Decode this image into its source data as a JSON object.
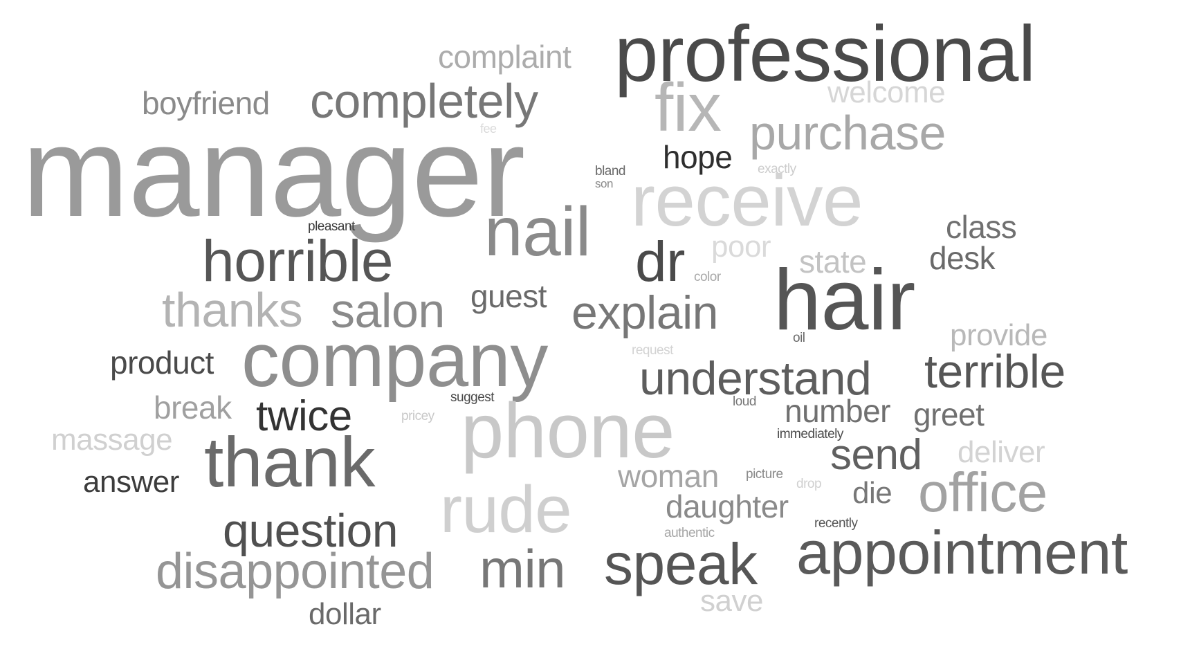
{
  "words": [
    {
      "id": "manager",
      "text": "manager",
      "color": "#9a9a9a"
    },
    {
      "id": "professional",
      "text": "professional",
      "color": "#4a4a4a"
    },
    {
      "id": "hair",
      "text": "hair",
      "color": "#555555"
    },
    {
      "id": "company",
      "text": "company",
      "color": "#8e8e8e"
    },
    {
      "id": "phone",
      "text": "phone",
      "color": "#c8c8c8"
    },
    {
      "id": "receive",
      "text": "receive",
      "color": "#d3d3d3"
    },
    {
      "id": "thank",
      "text": "thank",
      "color": "#6a6a6a"
    },
    {
      "id": "nail",
      "text": "nail",
      "color": "#8a8a8a"
    },
    {
      "id": "appointment",
      "text": "appointment",
      "color": "#5a5a5a"
    },
    {
      "id": "rude",
      "text": "rude",
      "color": "#cfcfcf"
    },
    {
      "id": "speak",
      "text": "speak",
      "color": "#555555"
    },
    {
      "id": "fix",
      "text": "fix",
      "color": "#b6b6b6"
    },
    {
      "id": "office",
      "text": "office",
      "color": "#a2a2a2"
    },
    {
      "id": "horrible",
      "text": "horrible",
      "color": "#565656"
    },
    {
      "id": "dr",
      "text": "dr",
      "color": "#4a4a4a"
    },
    {
      "id": "min",
      "text": "min",
      "color": "#777777"
    },
    {
      "id": "terrible",
      "text": "terrible",
      "color": "#565656"
    },
    {
      "id": "understand",
      "text": "understand",
      "color": "#5d5d5d"
    },
    {
      "id": "disappointed",
      "text": "disappointed",
      "color": "#959595"
    },
    {
      "id": "purchase",
      "text": "purchase",
      "color": "#a8a8a8"
    },
    {
      "id": "completely",
      "text": "completely",
      "color": "#777777"
    },
    {
      "id": "explain",
      "text": "explain",
      "color": "#777777"
    },
    {
      "id": "question",
      "text": "question",
      "color": "#505050"
    },
    {
      "id": "salon",
      "text": "salon",
      "color": "#8a8a8a"
    },
    {
      "id": "thanks",
      "text": "thanks",
      "color": "#b3b3b3"
    },
    {
      "id": "twice",
      "text": "twice",
      "color": "#333333"
    },
    {
      "id": "send",
      "text": "send",
      "color": "#606060"
    },
    {
      "id": "daughter",
      "text": "daughter",
      "color": "#8a8a8a"
    },
    {
      "id": "number",
      "text": "number",
      "color": "#707070"
    },
    {
      "id": "greet",
      "text": "greet",
      "color": "#707070"
    },
    {
      "id": "hope",
      "text": "hope",
      "color": "#2e2e2e"
    },
    {
      "id": "guest",
      "text": "guest",
      "color": "#6a6a6a"
    },
    {
      "id": "woman",
      "text": "woman",
      "color": "#a5a5a5"
    },
    {
      "id": "product",
      "text": "product",
      "color": "#4a4a4a"
    },
    {
      "id": "break",
      "text": "break",
      "color": "#a0a0a0"
    },
    {
      "id": "answer",
      "text": "answer",
      "color": "#3c3c3c"
    },
    {
      "id": "dollar",
      "text": "dollar",
      "color": "#6a6a6a"
    },
    {
      "id": "massage",
      "text": "massage",
      "color": "#d0d0d0"
    },
    {
      "id": "desk",
      "text": "desk",
      "color": "#6a6a6a"
    },
    {
      "id": "class",
      "text": "class",
      "color": "#707070"
    },
    {
      "id": "state",
      "text": "state",
      "color": "#c3c3c3"
    },
    {
      "id": "poor",
      "text": "poor",
      "color": "#dadada"
    },
    {
      "id": "provide",
      "text": "provide",
      "color": "#b8b8b8"
    },
    {
      "id": "deliver",
      "text": "deliver",
      "color": "#d3d3d3"
    },
    {
      "id": "die",
      "text": "die",
      "color": "#777777"
    },
    {
      "id": "save",
      "text": "save",
      "color": "#d0d0d0"
    },
    {
      "id": "welcome",
      "text": "welcome",
      "color": "#d6d6d6"
    },
    {
      "id": "complaint",
      "text": "complaint",
      "color": "#acacac"
    },
    {
      "id": "boyfriend",
      "text": "boyfriend",
      "color": "#8a8a8a"
    },
    {
      "id": "pleasant",
      "text": "pleasant",
      "color": "#3c3c3c"
    },
    {
      "id": "bland",
      "text": "bland",
      "color": "#6a6a6a"
    },
    {
      "id": "son",
      "text": "son",
      "color": "#8a8a8a"
    },
    {
      "id": "fee",
      "text": "fee",
      "color": "#dadada"
    },
    {
      "id": "exactly",
      "text": "exactly",
      "color": "#cccccc"
    },
    {
      "id": "color",
      "text": "color",
      "color": "#a8a8a8"
    },
    {
      "id": "oil",
      "text": "oil",
      "color": "#6a6a6a"
    },
    {
      "id": "request",
      "text": "request",
      "color": "#d3d3d3"
    },
    {
      "id": "suggest",
      "text": "suggest",
      "color": "#4a4a4a"
    },
    {
      "id": "loud",
      "text": "loud",
      "color": "#777777"
    },
    {
      "id": "pricey",
      "text": "pricey",
      "color": "#c8c8c8"
    },
    {
      "id": "immediately",
      "text": "immediately",
      "color": "#4a4a4a"
    },
    {
      "id": "picture",
      "text": "picture",
      "color": "#8a8a8a"
    },
    {
      "id": "drop",
      "text": "drop",
      "color": "#d0d0d0"
    },
    {
      "id": "authentic",
      "text": "authentic",
      "color": "#a5a5a5"
    },
    {
      "id": "recently",
      "text": "recently",
      "color": "#555555"
    }
  ]
}
